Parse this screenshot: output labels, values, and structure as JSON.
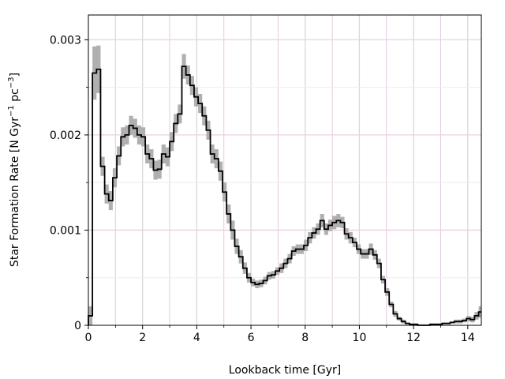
{
  "chart_data": {
    "type": "line",
    "title": "",
    "xlabel": "Lookback time [Gyr]",
    "ylabel_main": "Star Formation Rate [N Gyr",
    "ylabel_sup1": "−1",
    "ylabel_mid": " pc",
    "ylabel_sup2": "−3",
    "ylabel_end": "]",
    "xlim": [
      0,
      14.5
    ],
    "ylim": [
      0,
      0.00326
    ],
    "x_ticks": [
      0,
      2,
      4,
      6,
      8,
      10,
      12,
      14
    ],
    "x_tick_labels": [
      "0",
      "2",
      "4",
      "6",
      "8",
      "10",
      "12",
      "14"
    ],
    "y_ticks": [
      0,
      0.001,
      0.002,
      0.003
    ],
    "y_tick_labels": [
      "0",
      "0.001",
      "0.002",
      "0.003"
    ],
    "y_minor_ticks": [
      0.0005,
      0.0015,
      0.0025
    ],
    "grid": true,
    "colors": {
      "line": "#000000",
      "band": "#b0b0b0",
      "grid_major_x": "#d8d8d8",
      "grid_minor_x": "#e6c8de",
      "grid_major_y": "#e8d0e0",
      "grid_minor_y": "#eeeeee"
    },
    "bin_width": 0.15,
    "series": [
      {
        "x": [
          0,
          0.15,
          0.3,
          0.45,
          0.6,
          0.75,
          0.9,
          1.05,
          1.2,
          1.35,
          1.5,
          1.65,
          1.8,
          1.95,
          2.1,
          2.25,
          2.4,
          2.55,
          2.7,
          2.85,
          3.0,
          3.15,
          3.3,
          3.45,
          3.6,
          3.75,
          3.9,
          4.05,
          4.2,
          4.35,
          4.5,
          4.65,
          4.8,
          4.95,
          5.1,
          5.25,
          5.4,
          5.55,
          5.7,
          5.85,
          6.0,
          6.15,
          6.3,
          6.45,
          6.6,
          6.75,
          6.9,
          7.05,
          7.2,
          7.35,
          7.5,
          7.65,
          7.8,
          7.95,
          8.1,
          8.25,
          8.4,
          8.55,
          8.7,
          8.85,
          9.0,
          9.15,
          9.3,
          9.45,
          9.6,
          9.75,
          9.9,
          10.05,
          10.2,
          10.35,
          10.5,
          10.65,
          10.8,
          10.95,
          11.1,
          11.25,
          11.4,
          11.55,
          11.7,
          11.85,
          12.0,
          12.15,
          12.3,
          12.45,
          12.6,
          12.75,
          12.9,
          13.05,
          13.2,
          13.35,
          13.5,
          13.65,
          13.8,
          13.95,
          14.1,
          14.25,
          14.4
        ],
        "y": [
          0.0001,
          0.00265,
          0.00269,
          0.00167,
          0.00138,
          0.00131,
          0.00155,
          0.00178,
          0.00198,
          0.002,
          0.0021,
          0.00207,
          0.002,
          0.00198,
          0.0018,
          0.00175,
          0.00163,
          0.00164,
          0.0018,
          0.00177,
          0.00193,
          0.00212,
          0.00222,
          0.00272,
          0.00263,
          0.00252,
          0.0024,
          0.00233,
          0.0022,
          0.00205,
          0.0018,
          0.00175,
          0.00162,
          0.0014,
          0.00117,
          0.001,
          0.00083,
          0.00072,
          0.0006,
          0.0005,
          0.00045,
          0.00043,
          0.00044,
          0.00047,
          0.00052,
          0.00053,
          0.00057,
          0.0006,
          0.00065,
          0.0007,
          0.00078,
          0.0008,
          0.0008,
          0.00084,
          0.00092,
          0.00097,
          0.00101,
          0.0011,
          0.00101,
          0.00105,
          0.00108,
          0.0011,
          0.00108,
          0.00096,
          0.00092,
          0.00087,
          0.0008,
          0.00075,
          0.00075,
          0.0008,
          0.00074,
          0.00065,
          0.00048,
          0.00035,
          0.00022,
          0.00012,
          7e-05,
          4e-05,
          2e-05,
          1e-05,
          1e-05,
          0.0,
          0.0,
          0.0,
          1e-05,
          1e-05,
          1e-05,
          2e-05,
          2e-05,
          3e-05,
          4e-05,
          4e-05,
          5e-05,
          7e-05,
          6e-05,
          0.0001,
          0.00014
        ],
        "err": [
          0.0001,
          0.00028,
          0.00025,
          0.0001,
          0.0001,
          0.0001,
          0.0001,
          0.0001,
          0.0001,
          0.0001,
          0.0001,
          0.0001,
          0.0001,
          0.0001,
          0.0001,
          0.0001,
          0.0001,
          0.0001,
          0.0001,
          0.0001,
          0.0001,
          0.0001,
          0.0001,
          0.00013,
          0.0001,
          0.0001,
          0.0001,
          0.0001,
          0.0001,
          0.0001,
          0.0001,
          0.0001,
          0.0001,
          0.0001,
          0.0001,
          0.0001,
          8e-05,
          7e-05,
          6e-05,
          5e-05,
          4e-05,
          4e-05,
          4e-05,
          4e-05,
          4e-05,
          4e-05,
          4e-05,
          5e-05,
          5e-05,
          5e-05,
          5e-05,
          5e-05,
          5e-05,
          6e-05,
          6e-05,
          6e-05,
          6e-05,
          7e-05,
          6e-05,
          6e-05,
          7e-05,
          7e-05,
          6e-05,
          6e-05,
          6e-05,
          5e-05,
          5e-05,
          5e-05,
          5e-05,
          6e-05,
          5e-05,
          5e-05,
          4e-05,
          4e-05,
          3e-05,
          3e-05,
          2e-05,
          2e-05,
          1e-05,
          1e-05,
          1e-05,
          1e-05,
          1e-05,
          1e-05,
          1e-05,
          1e-05,
          1e-05,
          1e-05,
          1e-05,
          1e-05,
          2e-05,
          2e-05,
          2e-05,
          3e-05,
          3e-05,
          4e-05,
          6e-05
        ]
      }
    ]
  }
}
